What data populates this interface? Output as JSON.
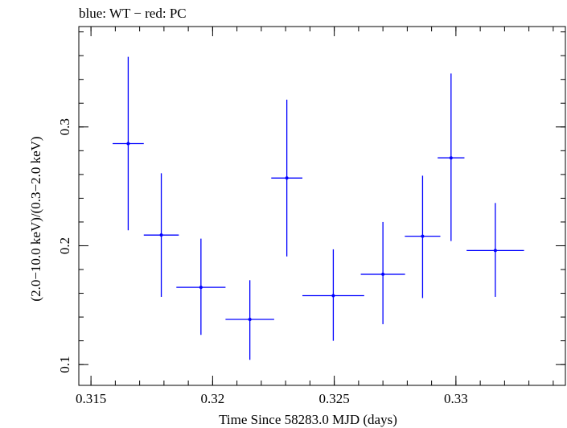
{
  "chart_data": {
    "type": "scatter",
    "title": "blue: WT − red: PC",
    "xlabel": "Time Since 58283.0 MJD (days)",
    "ylabel": "(2.0−10.0 keV)/(0.3−2.0 keV)",
    "xlim": [
      0.3145,
      0.3345
    ],
    "ylim": [
      0.0825,
      0.3845
    ],
    "x_ticks": [
      {
        "value": 0.315,
        "label": "0.315"
      },
      {
        "value": 0.32,
        "label": "0.32"
      },
      {
        "value": 0.325,
        "label": "0.325"
      },
      {
        "value": 0.33,
        "label": "0.33"
      }
    ],
    "y_ticks": [
      {
        "value": 0.1,
        "label": "0.1"
      },
      {
        "value": 0.2,
        "label": "0.2"
      },
      {
        "value": 0.3,
        "label": "0.3"
      }
    ],
    "x_minor_step": 0.001,
    "y_minor_step": 0.02,
    "grid": false,
    "series": [
      {
        "color": "#0000ff",
        "points": [
          {
            "x": 0.31653,
            "xerr": 0.00064,
            "y": 0.286,
            "ylow": 0.213,
            "yhigh": 0.359
          },
          {
            "x": 0.31789,
            "xerr": 0.00072,
            "y": 0.209,
            "ylow": 0.157,
            "yhigh": 0.261
          },
          {
            "x": 0.31952,
            "xerr": 0.00101,
            "y": 0.165,
            "ylow": 0.125,
            "yhigh": 0.206
          },
          {
            "x": 0.32153,
            "xerr": 0.001,
            "y": 0.138,
            "ylow": 0.104,
            "yhigh": 0.171
          },
          {
            "x": 0.32305,
            "xerr": 0.00064,
            "y": 0.257,
            "ylow": 0.191,
            "yhigh": 0.323
          },
          {
            "x": 0.32496,
            "xerr": 0.00127,
            "y": 0.158,
            "ylow": 0.12,
            "yhigh": 0.197
          },
          {
            "x": 0.327,
            "xerr": 0.00091,
            "y": 0.176,
            "ylow": 0.134,
            "yhigh": 0.22
          },
          {
            "x": 0.32863,
            "xerr": 0.00073,
            "y": 0.208,
            "ylow": 0.156,
            "yhigh": 0.259
          },
          {
            "x": 0.3298,
            "xerr": 0.00055,
            "y": 0.274,
            "ylow": 0.204,
            "yhigh": 0.345
          },
          {
            "x": 0.33162,
            "xerr": 0.00118,
            "y": 0.196,
            "ylow": 0.157,
            "yhigh": 0.236
          }
        ]
      }
    ]
  }
}
